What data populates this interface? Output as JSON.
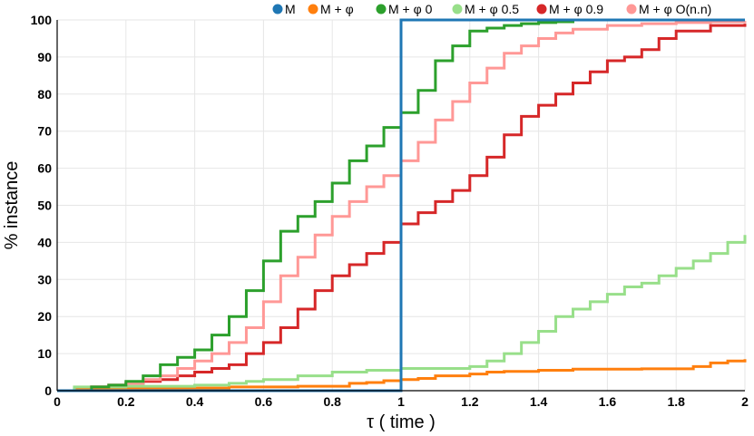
{
  "chart_data": {
    "type": "line",
    "step": true,
    "xlabel": "τ ( time )",
    "ylabel": "% instance",
    "xlim": [
      0,
      2
    ],
    "ylim": [
      0,
      100
    ],
    "x_ticks": [
      0,
      0.2,
      0.4,
      0.6,
      0.8,
      1,
      1.2,
      1.4,
      1.6,
      1.8,
      2
    ],
    "x_tick_labels": [
      "0",
      "0.2",
      "0.4",
      "0.6",
      "0.8",
      "1",
      "1.2",
      "1.4",
      "1.6",
      "1.8",
      "2"
    ],
    "y_ticks": [
      0,
      10,
      20,
      30,
      40,
      50,
      60,
      70,
      80,
      90,
      100
    ],
    "y_tick_labels": [
      "0",
      "10",
      "20",
      "30",
      "40",
      "50",
      "60",
      "70",
      "80",
      "90",
      "100"
    ],
    "grid": true,
    "legend_position": "top",
    "series": [
      {
        "name": "M",
        "color": "#1f77b4",
        "x": [
          0,
          0.09,
          1.0,
          1.0,
          2.0
        ],
        "y": [
          0,
          0,
          0,
          100,
          100
        ]
      },
      {
        "name": "M + φ",
        "color": "#ff7f0e",
        "x": [
          0,
          0.05,
          0.2,
          0.3,
          0.5,
          0.7,
          0.85,
          0.9,
          0.95,
          1.0,
          1.05,
          1.1,
          1.2,
          1.25,
          1.3,
          1.4,
          1.5,
          1.6,
          1.7,
          1.8,
          1.85,
          1.9,
          1.95,
          2.0
        ],
        "y": [
          0,
          0.5,
          0.5,
          0.7,
          1.0,
          1.2,
          2.0,
          2.2,
          2.7,
          3.0,
          3.3,
          4.0,
          4.5,
          5.0,
          5.2,
          5.5,
          5.8,
          5.8,
          5.9,
          5.9,
          6.5,
          7.5,
          8.0,
          8.5
        ]
      },
      {
        "name": "M + φ 0",
        "color": "#2ca02c",
        "x": [
          0,
          0.1,
          0.15,
          0.2,
          0.25,
          0.3,
          0.35,
          0.4,
          0.45,
          0.5,
          0.55,
          0.6,
          0.65,
          0.7,
          0.75,
          0.8,
          0.85,
          0.9,
          0.95,
          1.0,
          1.05,
          1.1,
          1.15,
          1.2,
          1.25,
          1.3,
          1.35,
          1.4,
          1.45,
          1.5,
          1.6,
          1.8,
          2.0
        ],
        "y": [
          0,
          1,
          1.5,
          2.5,
          4,
          7,
          9,
          11,
          15,
          20,
          27,
          35,
          43,
          47,
          51,
          56,
          62,
          66,
          71,
          75,
          81,
          89,
          93,
          97,
          97.8,
          98.5,
          99,
          99.3,
          99.5,
          100,
          100,
          100,
          100
        ]
      },
      {
        "name": "M + φ 0.5",
        "color": "#98df8a",
        "x": [
          0,
          0.05,
          0.2,
          0.4,
          0.5,
          0.55,
          0.6,
          0.7,
          0.8,
          0.9,
          1.0,
          1.1,
          1.2,
          1.25,
          1.3,
          1.35,
          1.4,
          1.45,
          1.5,
          1.55,
          1.6,
          1.65,
          1.7,
          1.75,
          1.8,
          1.85,
          1.9,
          1.95,
          2.0
        ],
        "y": [
          0,
          1,
          1.2,
          1.5,
          2,
          2.5,
          3,
          4,
          5,
          5.5,
          6,
          6,
          6.5,
          8,
          10,
          13,
          16,
          20,
          22,
          24,
          26,
          28,
          29,
          31,
          33,
          35,
          37,
          40,
          42
        ]
      },
      {
        "name": "M + φ 0.9",
        "color": "#d62728",
        "x": [
          0,
          0.1,
          0.15,
          0.2,
          0.25,
          0.3,
          0.35,
          0.4,
          0.45,
          0.5,
          0.55,
          0.6,
          0.65,
          0.7,
          0.75,
          0.8,
          0.85,
          0.9,
          0.95,
          1.0,
          1.05,
          1.1,
          1.15,
          1.2,
          1.25,
          1.3,
          1.35,
          1.4,
          1.45,
          1.5,
          1.55,
          1.6,
          1.65,
          1.7,
          1.75,
          1.8,
          1.9,
          2.0
        ],
        "y": [
          0,
          1,
          1.5,
          2,
          2.5,
          3,
          4,
          5,
          6,
          7,
          10,
          13,
          17,
          22,
          27,
          31,
          34,
          37,
          40,
          45,
          48,
          51,
          54,
          58,
          63,
          69,
          74,
          77,
          80,
          83,
          86,
          89,
          90,
          92,
          95,
          97,
          98.5,
          99
        ]
      },
      {
        "name": "M + φ O(n.n)",
        "color": "#ff9896",
        "x": [
          0,
          0.1,
          0.15,
          0.2,
          0.25,
          0.3,
          0.35,
          0.4,
          0.45,
          0.5,
          0.55,
          0.6,
          0.65,
          0.7,
          0.75,
          0.8,
          0.85,
          0.9,
          0.95,
          1.0,
          1.05,
          1.1,
          1.15,
          1.2,
          1.25,
          1.3,
          1.35,
          1.4,
          1.45,
          1.5,
          1.6,
          1.7,
          1.8,
          1.9,
          2.0
        ],
        "y": [
          0,
          1,
          1.5,
          2,
          3,
          4,
          6,
          8,
          10,
          13,
          17,
          24,
          31,
          36,
          42,
          47,
          51,
          55,
          58,
          62,
          67,
          73,
          78,
          83,
          87,
          91,
          93,
          95,
          96.5,
          97.5,
          98.5,
          99,
          99.3,
          99.5,
          99.7
        ]
      }
    ]
  }
}
